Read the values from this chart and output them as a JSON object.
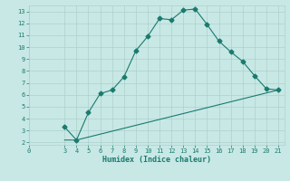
{
  "line1_x": [
    3,
    4,
    5,
    6,
    7,
    8,
    9,
    10,
    11,
    12,
    13,
    14,
    15,
    16,
    17,
    18,
    19,
    20,
    21
  ],
  "line1_y": [
    3.3,
    2.2,
    4.5,
    6.1,
    6.4,
    7.5,
    9.7,
    10.9,
    12.4,
    12.3,
    13.1,
    13.2,
    11.9,
    10.5,
    9.6,
    8.8,
    7.6,
    6.5,
    6.4
  ],
  "line2_x": [
    3,
    4,
    21
  ],
  "line2_y": [
    2.2,
    2.2,
    6.4
  ],
  "line_color": "#1a7a6e",
  "bg_color": "#c8e8e5",
  "grid_color": "#aed0cd",
  "xlabel": "Humidex (Indice chaleur)",
  "xlim": [
    0,
    21.5
  ],
  "ylim": [
    1.8,
    13.5
  ],
  "xticks": [
    0,
    3,
    4,
    5,
    6,
    7,
    8,
    9,
    10,
    11,
    12,
    13,
    14,
    15,
    16,
    17,
    18,
    19,
    20,
    21
  ],
  "yticks": [
    2,
    3,
    4,
    5,
    6,
    7,
    8,
    9,
    10,
    11,
    12,
    13
  ],
  "marker": "D",
  "marker_size": 2.5,
  "linewidth": 0.8,
  "tick_fontsize": 5.0,
  "xlabel_fontsize": 6.0
}
